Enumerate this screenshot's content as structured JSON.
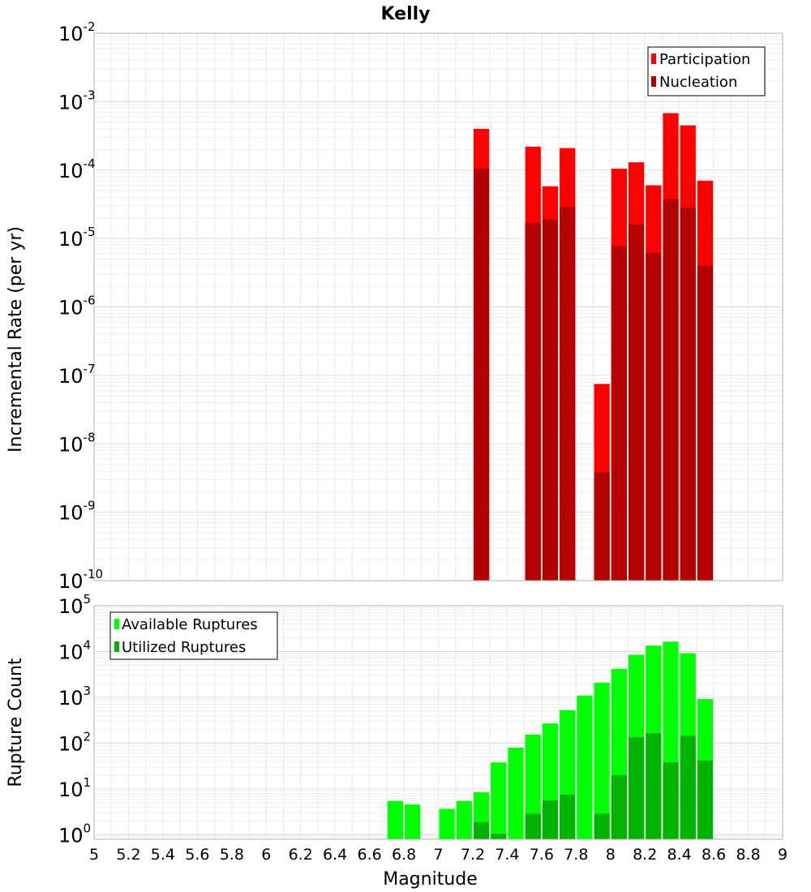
{
  "chart_data": [
    {
      "type": "bar",
      "title": "Kelly",
      "xlabel": "",
      "ylabel": "Incremental Rate (per yr)",
      "y_scale": "log",
      "xlim": [
        5,
        9
      ],
      "ylim": [
        1e-10,
        0.01
      ],
      "y_ticks": [
        {
          "base": "10",
          "exp": "-2",
          "value": 0.01
        },
        {
          "base": "10",
          "exp": "-3",
          "value": 0.001
        },
        {
          "base": "10",
          "exp": "-4",
          "value": 0.0001
        },
        {
          "base": "10",
          "exp": "-5",
          "value": 1e-05
        },
        {
          "base": "10",
          "exp": "-6",
          "value": 1e-06
        },
        {
          "base": "10",
          "exp": "-7",
          "value": 1e-07
        },
        {
          "base": "10",
          "exp": "-8",
          "value": 1e-08
        },
        {
          "base": "10",
          "exp": "-9",
          "value": 1e-09
        },
        {
          "base": "10",
          "exp": "-10",
          "value": 1e-10
        }
      ],
      "grid": true,
      "legend_position": "top-right",
      "bar_width": 0.1,
      "series": [
        {
          "name": "Participation",
          "color": "#ff0000",
          "points": [
            {
              "x": 7.25,
              "y": 0.0004
            },
            {
              "x": 7.55,
              "y": 0.00022
            },
            {
              "x": 7.65,
              "y": 5.8e-05
            },
            {
              "x": 7.75,
              "y": 0.00021
            },
            {
              "x": 7.95,
              "y": 7.5e-08
            },
            {
              "x": 8.05,
              "y": 0.000105
            },
            {
              "x": 8.15,
              "y": 0.00013
            },
            {
              "x": 8.25,
              "y": 6e-05
            },
            {
              "x": 8.35,
              "y": 0.00068
            },
            {
              "x": 8.45,
              "y": 0.00045
            },
            {
              "x": 8.55,
              "y": 7e-05
            }
          ]
        },
        {
          "name": "Nucleation",
          "color": "#b30000",
          "points": [
            {
              "x": 7.25,
              "y": 0.000105
            },
            {
              "x": 7.55,
              "y": 1.7e-05
            },
            {
              "x": 7.65,
              "y": 1.9e-05
            },
            {
              "x": 7.75,
              "y": 2.9e-05
            },
            {
              "x": 7.95,
              "y": 3.8e-09
            },
            {
              "x": 8.05,
              "y": 7.8e-06
            },
            {
              "x": 8.15,
              "y": 1.6e-05
            },
            {
              "x": 8.25,
              "y": 6.2e-06
            },
            {
              "x": 8.35,
              "y": 3.8e-05
            },
            {
              "x": 8.45,
              "y": 2.8e-05
            },
            {
              "x": 8.55,
              "y": 4e-06
            }
          ]
        }
      ]
    },
    {
      "type": "bar",
      "title": "",
      "xlabel": "Magnitude",
      "ylabel": "Rupture Count",
      "y_scale": "log",
      "xlim": [
        5,
        9
      ],
      "ylim": [
        0.8,
        100000.0
      ],
      "x_ticks": [
        "5",
        "5.2",
        "5.4",
        "5.6",
        "5.8",
        "6",
        "6.2",
        "6.4",
        "6.6",
        "6.8",
        "7",
        "7.2",
        "7.4",
        "7.6",
        "7.8",
        "8",
        "8.2",
        "8.4",
        "8.6",
        "8.8",
        "9"
      ],
      "y_ticks": [
        {
          "base": "10",
          "exp": "5",
          "value": 100000.0
        },
        {
          "base": "10",
          "exp": "4",
          "value": 10000.0
        },
        {
          "base": "10",
          "exp": "3",
          "value": 1000.0
        },
        {
          "base": "10",
          "exp": "2",
          "value": 100.0
        },
        {
          "base": "10",
          "exp": "1",
          "value": 10.0
        },
        {
          "base": "10",
          "exp": "0",
          "value": 1
        }
      ],
      "grid": true,
      "legend_position": "top-left",
      "bar_width": 0.1,
      "series": [
        {
          "name": "Available Ruptures",
          "color": "#00ff00",
          "points": [
            {
              "x": 6.75,
              "y": 5.5
            },
            {
              "x": 6.85,
              "y": 4.6
            },
            {
              "x": 7.05,
              "y": 3.7
            },
            {
              "x": 7.15,
              "y": 5.5
            },
            {
              "x": 7.25,
              "y": 8.5
            },
            {
              "x": 7.35,
              "y": 38
            },
            {
              "x": 7.45,
              "y": 80
            },
            {
              "x": 7.55,
              "y": 155
            },
            {
              "x": 7.65,
              "y": 270
            },
            {
              "x": 7.75,
              "y": 530
            },
            {
              "x": 7.85,
              "y": 1100
            },
            {
              "x": 7.95,
              "y": 2100
            },
            {
              "x": 8.05,
              "y": 4200
            },
            {
              "x": 8.15,
              "y": 8500
            },
            {
              "x": 8.25,
              "y": 13500
            },
            {
              "x": 8.35,
              "y": 16500
            },
            {
              "x": 8.45,
              "y": 9200
            },
            {
              "x": 8.55,
              "y": 920
            }
          ]
        },
        {
          "name": "Utilized Ruptures",
          "color": "#00b300",
          "points": [
            {
              "x": 7.25,
              "y": 1.9
            },
            {
              "x": 7.35,
              "y": 1.05
            },
            {
              "x": 7.55,
              "y": 2.9
            },
            {
              "x": 7.65,
              "y": 5.6
            },
            {
              "x": 7.75,
              "y": 7.5
            },
            {
              "x": 7.95,
              "y": 2.9
            },
            {
              "x": 8.05,
              "y": 20
            },
            {
              "x": 8.15,
              "y": 135
            },
            {
              "x": 8.25,
              "y": 165
            },
            {
              "x": 8.35,
              "y": 38
            },
            {
              "x": 8.45,
              "y": 145
            },
            {
              "x": 8.55,
              "y": 42
            }
          ]
        }
      ]
    }
  ]
}
